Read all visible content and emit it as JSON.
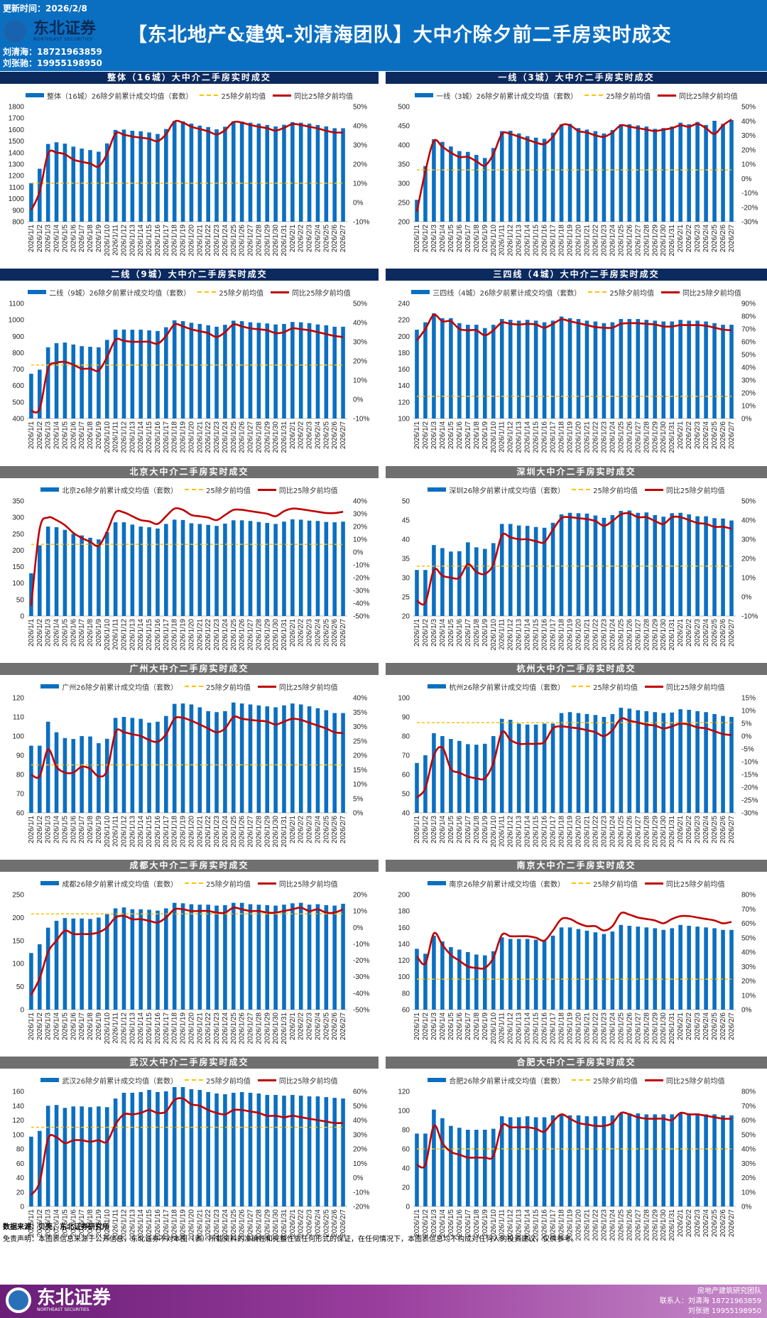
{
  "header": {
    "update": "更新时间：2026/2/8",
    "logo_cn": "东北证券",
    "logo_en": "NORTHEAST SECURITIES",
    "title": "【东北地产&建筑-刘清海团队】大中介除夕前二手房实时成交",
    "contact1": "刘清海：18721963859",
    "contact2": "刘张驰：19955198950"
  },
  "colors": {
    "header": "#0b6fc1",
    "bar": "#0b6fc1",
    "line": "#c00000",
    "avg": "#ffc000",
    "title_group": "#0c2a5e",
    "title_city": "#707070"
  },
  "legend_avg": "25除夕前均值",
  "legend_line": "同比25除夕前均值",
  "categories": [
    "2026/1/1",
    "2026/1/2",
    "2026/1/3",
    "2026/1/4",
    "2026/1/5",
    "2026/1/6",
    "2026/1/7",
    "2026/1/8",
    "2026/1/9",
    "2026/1/10",
    "2026/1/11",
    "2026/1/12",
    "2026/1/13",
    "2026/1/14",
    "2026/1/15",
    "2026/1/16",
    "2026/1/17",
    "2026/1/18",
    "2026/1/19",
    "2026/1/20",
    "2026/1/21",
    "2026/1/22",
    "2026/1/23",
    "2026/1/24",
    "2026/1/25",
    "2026/1/26",
    "2026/1/27",
    "2026/1/28",
    "2026/1/29",
    "2026/1/30",
    "2026/1/31",
    "2026/2/1",
    "2026/2/2",
    "2026/2/3",
    "2026/2/4",
    "2026/2/5",
    "2026/2/6",
    "2026/2/7"
  ],
  "chart_data": [
    {
      "type": "bar+line",
      "title": "整体（16城）大中介二手房实时成交",
      "bar_name": "整体（16城）26除夕前累计成交均值（套数）",
      "ylim": [
        800,
        1800
      ],
      "ystep": 100,
      "y2lim": [
        -10,
        50
      ],
      "y2step": 10,
      "avg": 1135,
      "group": true,
      "bars": [
        1135,
        1260,
        1475,
        1490,
        1478,
        1452,
        1435,
        1422,
        1408,
        1480,
        1597,
        1600,
        1590,
        1585,
        1575,
        1562,
        1605,
        1675,
        1672,
        1652,
        1635,
        1622,
        1602,
        1625,
        1672,
        1670,
        1660,
        1652,
        1640,
        1628,
        1642,
        1665,
        1660,
        1652,
        1640,
        1628,
        1612,
        1612
      ],
      "line": [
        -4,
        5.6,
        25.4,
        26,
        25.1,
        22.4,
        21.2,
        20.3,
        18.8,
        25.4,
        35.9,
        35.3,
        34.4,
        33.8,
        33.2,
        32,
        35.6,
        42.2,
        41.6,
        39.5,
        38.3,
        37.1,
        35.5,
        37.7,
        41.9,
        41.6,
        40.4,
        39.5,
        38.7,
        37.5,
        38.9,
        40.9,
        40.4,
        39.5,
        38.6,
        37.4,
        36.5,
        36.5
      ]
    },
    {
      "type": "bar+line",
      "title": "一线（3城）大中介二手房实时成交",
      "bar_name": "一线（3城）26除夕前累计成交均值（套数）",
      "ylim": [
        200,
        500
      ],
      "ystep": 50,
      "y2lim": [
        -30,
        50
      ],
      "y2step": 10,
      "avg": 335,
      "group": true,
      "bars": [
        257,
        345,
        415,
        408,
        396,
        384,
        382,
        374,
        366,
        392,
        436,
        437,
        430,
        423,
        419,
        416,
        432,
        454,
        455,
        444,
        440,
        436,
        430,
        439,
        454,
        454,
        451,
        448,
        442,
        444,
        448,
        458,
        454,
        460,
        452,
        463,
        455,
        465
      ],
      "line": [
        -23,
        5,
        26,
        22,
        18,
        15,
        15,
        12,
        9,
        17,
        31,
        31,
        29,
        27,
        25,
        24,
        29,
        37,
        37,
        33,
        32,
        30,
        29,
        32,
        37,
        36,
        35,
        34,
        33,
        34,
        35,
        37,
        36,
        38,
        35,
        31,
        37,
        41
      ]
    },
    {
      "type": "bar+line",
      "title": "二线（9城）大中介二手房实时成交",
      "bar_name": "二线（9城）26除夕前累计成交均值（套数）",
      "ylim": [
        400,
        1100
      ],
      "ystep": 100,
      "y2lim": [
        -10,
        50
      ],
      "y2step": 10,
      "avg": 725,
      "group": true,
      "bars": [
        672,
        697,
        833,
        858,
        862,
        850,
        840,
        836,
        833,
        878,
        940,
        941,
        940,
        940,
        936,
        932,
        955,
        997,
        992,
        982,
        975,
        967,
        958,
        970,
        995,
        992,
        985,
        982,
        978,
        972,
        975,
        987,
        985,
        980,
        972,
        967,
        958,
        958
      ],
      "line": [
        -6,
        -5,
        16,
        19,
        19.5,
        18,
        16,
        16,
        15,
        22,
        31,
        30.5,
        30,
        30,
        30,
        29,
        33,
        39,
        38,
        36.5,
        35.5,
        34.5,
        32.5,
        35,
        39,
        38,
        37,
        36.5,
        36,
        34.5,
        35,
        37,
        36.5,
        36,
        35,
        34,
        33,
        32.5
      ]
    },
    {
      "type": "bar+line",
      "title": "三四线（4城）大中介二手房实时成交",
      "bar_name": "三四线（4城）26除夕前累计成交均值（套数）",
      "ylim": [
        100,
        240
      ],
      "ystep": 20,
      "y2lim": [
        0,
        90
      ],
      "y2step": 10,
      "avg": 127,
      "group": true,
      "bars": [
        208,
        217,
        228,
        222,
        222,
        216,
        214,
        214,
        210,
        214,
        221,
        220,
        219,
        220,
        219,
        217,
        219,
        224,
        222,
        221,
        219,
        218,
        216,
        217,
        221,
        221,
        221,
        220,
        219,
        218,
        218,
        220,
        219,
        219,
        218,
        216,
        214,
        214
      ],
      "line": [
        61,
        70,
        81,
        76,
        76,
        70,
        69,
        69,
        65,
        69,
        75,
        74,
        73.5,
        74,
        73.5,
        71,
        74,
        77.5,
        76,
        74.5,
        73,
        71.5,
        71,
        71,
        74,
        74.5,
        74.5,
        74,
        73.5,
        72,
        72,
        73,
        73,
        73,
        72.5,
        71,
        69.5,
        69
      ]
    },
    {
      "type": "bar+line",
      "title": "北京大中介二手房实时成交",
      "bar_name": "北京26除夕前累计成交均值（套数）",
      "ylim": [
        0,
        350
      ],
      "ystep": 50,
      "y2lim": [
        -50,
        40
      ],
      "y2step": 10,
      "avg": 218,
      "group": false,
      "bars": [
        130,
        215,
        272,
        270,
        262,
        250,
        245,
        238,
        233,
        255,
        285,
        285,
        278,
        272,
        270,
        266,
        280,
        293,
        292,
        282,
        280,
        277,
        274,
        281,
        291,
        291,
        289,
        286,
        283,
        280,
        287,
        294,
        293,
        290,
        289,
        286,
        285,
        287
      ],
      "line": [
        -42,
        18,
        27,
        25,
        21,
        15,
        11,
        8,
        5,
        16,
        31,
        31,
        28,
        25,
        24,
        22,
        28,
        34,
        33,
        29,
        28,
        27,
        25,
        29,
        33,
        33,
        32,
        31,
        30,
        28,
        32,
        34,
        33.5,
        32.5,
        31.5,
        30.5,
        30.5,
        31.5
      ]
    },
    {
      "type": "bar+line",
      "title": "深圳大中介二手房实时成交",
      "bar_name": "深圳26除夕前累计成交均值（套数）",
      "ylim": [
        20,
        50
      ],
      "ystep": 5,
      "y2lim": [
        -10,
        50
      ],
      "y2step": 10,
      "avg": 33,
      "group": false,
      "bars": [
        32,
        32,
        38.5,
        37.7,
        36.8,
        36.9,
        39.2,
        37.9,
        37.5,
        39,
        44,
        44,
        43.6,
        43.5,
        43.2,
        43,
        44.3,
        46.5,
        46.9,
        46.8,
        46.7,
        46.2,
        45.6,
        46.3,
        47.4,
        47.5,
        46.9,
        47,
        46.3,
        45.9,
        46.8,
        46.9,
        46.5,
        46,
        46,
        45.5,
        45.4,
        44.9
      ],
      "line": [
        -2,
        -3,
        14,
        11,
        10,
        10,
        17,
        13,
        12,
        17,
        32,
        31,
        30,
        30,
        29,
        28.5,
        35,
        41,
        41.5,
        41,
        40.5,
        39.5,
        37,
        39.5,
        43,
        43.5,
        41.5,
        41.5,
        39.5,
        38,
        41.5,
        41.5,
        40,
        38.5,
        38,
        36.5,
        36.5,
        35.5
      ]
    },
    {
      "type": "bar+line",
      "title": "广州大中介二手房实时成交",
      "bar_name": "广州26除夕前累计成交均值（套数）",
      "ylim": [
        60,
        120
      ],
      "ystep": 10,
      "y2lim": [
        0,
        40
      ],
      "y2step": 5,
      "avg": 85,
      "group": false,
      "bars": [
        95,
        95,
        107.5,
        102,
        99,
        98.5,
        100,
        99.8,
        96.3,
        98.6,
        109.5,
        110,
        109.5,
        109,
        107,
        107.5,
        110.5,
        116.8,
        117,
        116.5,
        115,
        113,
        112.5,
        113,
        117.5,
        117,
        116.5,
        116,
        115.5,
        115,
        116,
        117,
        116.5,
        115.5,
        114.5,
        113.5,
        112,
        112
      ],
      "line": [
        13.3,
        12.7,
        22,
        16,
        14,
        14,
        16,
        15.3,
        12.7,
        14.7,
        28,
        28,
        27.3,
        26.7,
        25.3,
        24.7,
        27.3,
        32.7,
        33,
        32,
        30.7,
        29.3,
        28,
        29.3,
        33.3,
        32.7,
        32.3,
        32,
        31.7,
        30.7,
        31.7,
        32.7,
        32.3,
        31.3,
        30.3,
        29.3,
        28,
        27.7
      ]
    },
    {
      "type": "bar+line",
      "title": "杭州大中介二手房实时成交",
      "bar_name": "杭州26除夕前累计成交均值（套数）",
      "ylim": [
        40,
        100
      ],
      "ystep": 10,
      "y2lim": [
        -30,
        15
      ],
      "y2step": 5,
      "avg": 87,
      "group": false,
      "bars": [
        66,
        70,
        81.5,
        80,
        78.5,
        77.5,
        75.8,
        75.5,
        76,
        80,
        89,
        88.5,
        86.5,
        86,
        86,
        86.5,
        86.5,
        92,
        92.5,
        92,
        91.5,
        91,
        90,
        91.5,
        94.8,
        94.3,
        93.5,
        93,
        92.5,
        92,
        92.3,
        94,
        93.7,
        93,
        92.5,
        91.5,
        90.5,
        90
      ],
      "line": [
        -24,
        -20.3,
        -7.5,
        -4.5,
        -12.8,
        -14.3,
        -15.8,
        -16.5,
        -16.5,
        -10.5,
        1.5,
        -1.5,
        -3,
        -3,
        -3,
        -2.3,
        3,
        3.8,
        3.4,
        3,
        2.3,
        1.5,
        0,
        2.3,
        6.8,
        6,
        5.3,
        4.5,
        4.1,
        3,
        3.8,
        4.9,
        4.5,
        3.4,
        3,
        1.9,
        0.8,
        0.4
      ]
    },
    {
      "type": "bar+line",
      "title": "成都大中介二手房实时成交",
      "bar_name": "成都26除夕前累计成交均值（套数）",
      "ylim": [
        0,
        250
      ],
      "ystep": 50,
      "y2lim": [
        -50,
        20
      ],
      "y2step": 10,
      "avg": 208,
      "group": false,
      "bars": [
        123,
        142,
        178,
        193,
        199,
        198,
        198,
        197,
        200,
        208,
        220,
        222,
        218,
        218,
        217,
        215,
        220,
        232,
        231,
        229,
        228,
        228,
        226,
        227,
        232,
        232,
        229,
        228,
        227,
        226,
        228,
        231,
        232,
        228,
        229,
        227,
        226,
        230
      ],
      "line": [
        -41,
        -31,
        -15,
        -8,
        -2,
        -4,
        -4,
        -4,
        -3,
        0,
        6,
        7,
        5,
        5,
        4,
        3,
        6,
        11,
        11,
        10,
        10,
        10,
        9,
        9,
        12,
        11,
        10,
        10,
        9,
        9,
        10,
        11,
        12,
        10,
        11,
        9,
        9,
        11
      ]
    },
    {
      "type": "bar+line",
      "title": "南京大中介二手房实时成交",
      "bar_name": "南京26除夕前累计成交均值（套数）",
      "ylim": [
        60,
        200
      ],
      "ystep": 20,
      "y2lim": [
        0,
        80
      ],
      "y2step": 10,
      "avg": 97,
      "group": false,
      "bars": [
        134,
        128,
        150,
        143,
        136,
        133,
        130,
        127,
        126,
        131,
        148,
        146,
        146,
        146,
        145,
        144,
        150,
        160,
        160,
        158,
        156,
        154,
        152,
        155,
        163,
        162,
        161,
        160,
        159,
        157,
        159,
        163,
        162,
        161,
        160,
        159,
        157,
        157
      ],
      "line": [
        37,
        32,
        53,
        45,
        38,
        34,
        30,
        29,
        29,
        36,
        52,
        51,
        51,
        51,
        50,
        48,
        55,
        63,
        63,
        60,
        58,
        58,
        55,
        58,
        67,
        66,
        64,
        63,
        62,
        60,
        63,
        65,
        65,
        64,
        63,
        62,
        60,
        61
      ]
    },
    {
      "type": "bar+line",
      "title": "武汉大中介二手房实时成交",
      "bar_name": "武汉26除夕前累计成交均值（套数）",
      "ylim": [
        0,
        160
      ],
      "ystep": 20,
      "y2lim": [
        -20,
        60
      ],
      "y2step": 10,
      "avg": 110,
      "group": false,
      "bars": [
        97,
        105,
        140,
        141,
        137,
        139,
        139,
        138,
        139,
        138,
        150,
        158,
        158,
        159,
        162,
        159,
        160,
        166,
        166,
        163,
        162,
        159,
        157,
        156,
        158,
        159,
        158,
        157,
        155,
        155,
        154,
        155,
        154,
        153,
        153,
        152,
        151,
        150
      ],
      "line": [
        -12,
        -3,
        27,
        28,
        24,
        26,
        26,
        25,
        26,
        25,
        37,
        44,
        44,
        45,
        47,
        45,
        46,
        54,
        55,
        51,
        50,
        47,
        45,
        44,
        47,
        47,
        46,
        45,
        43,
        43,
        42,
        43,
        42,
        41,
        40,
        39,
        38,
        38
      ]
    },
    {
      "type": "bar+line",
      "title": "合肥大中介二手房实时成交",
      "bar_name": "合肥26除夕前累计成交均值（套数）",
      "ylim": [
        0,
        120
      ],
      "ystep": 20,
      "y2lim": [
        0,
        80
      ],
      "y2step": 10,
      "avg": 60,
      "group": false,
      "bars": [
        76,
        76,
        101,
        92,
        84,
        82,
        80,
        80,
        80,
        81,
        94,
        93,
        93,
        94,
        93,
        93,
        95,
        96,
        95,
        95,
        94,
        94,
        94,
        95,
        97,
        97,
        97,
        96,
        96,
        96,
        96,
        97,
        97,
        97,
        96,
        96,
        95,
        95
      ],
      "line": [
        29,
        29,
        56,
        44,
        38,
        36,
        34,
        34,
        34,
        35,
        56,
        55,
        55,
        55,
        54,
        52,
        59,
        64,
        61,
        58,
        57,
        56,
        56,
        58,
        65,
        64,
        62,
        61,
        61,
        61,
        60,
        65,
        64,
        64,
        63,
        62,
        61,
        61
      ]
    }
  ],
  "footer": {
    "source": "数据来源：贝壳，东北证券研究所",
    "disclaimer": "免责声明：本图表信息来源于公开信息，东北证券不对本图（表）所载资料的准确性和完整性做任何形式的保证，在任何情况下，本图表信息均不构成对任何人的投资建议，仅供参考。",
    "banner_team": "房地产建筑研究团队",
    "banner_contact1": "联系人：刘清海 18721963859",
    "banner_contact2": "刘张驰 19955198950"
  }
}
